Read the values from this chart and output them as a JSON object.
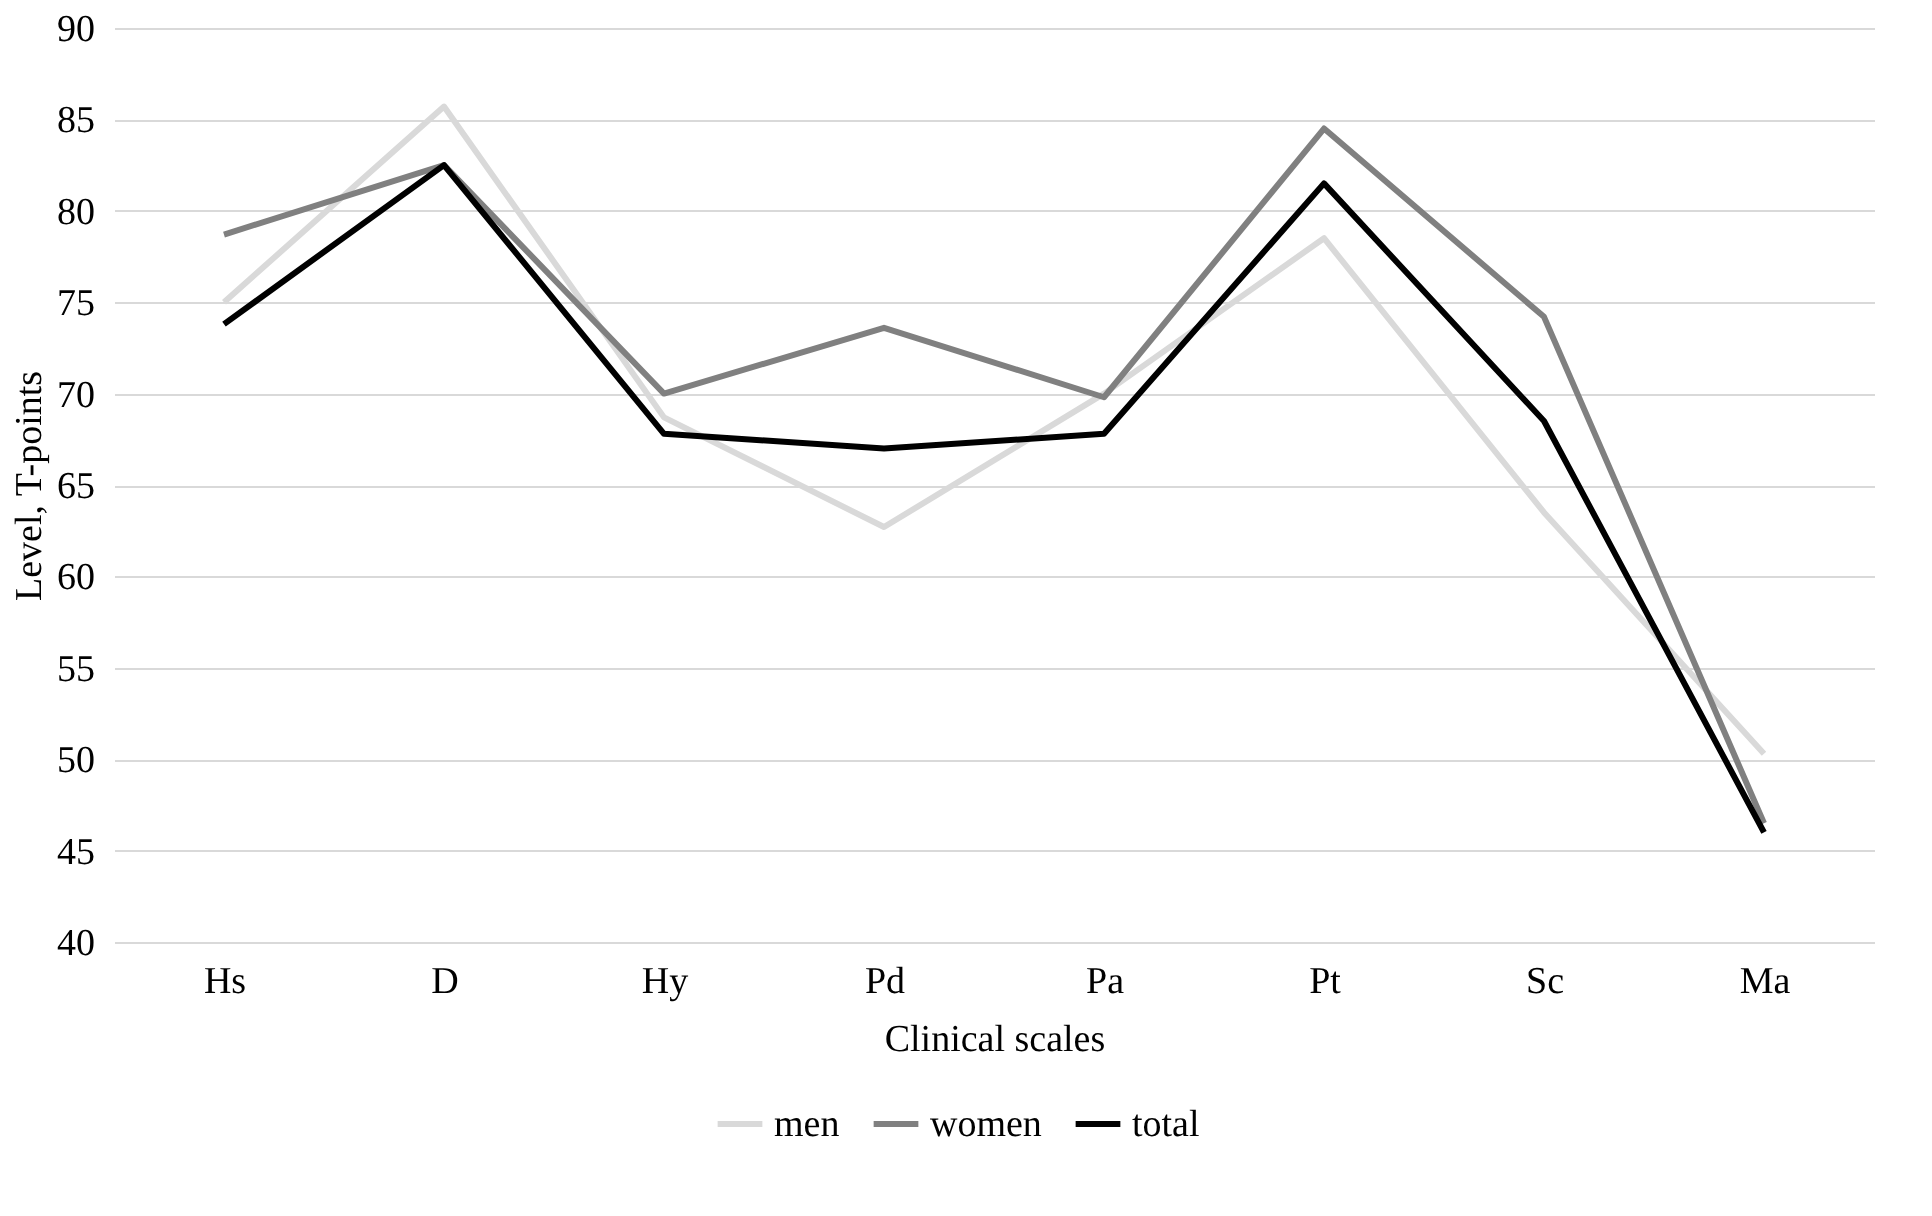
{
  "chart_data": {
    "type": "line",
    "xlabel": "Clinical scales",
    "ylabel": "Level, T-points",
    "categories": [
      "Hs",
      "D",
      "Hy",
      "Pd",
      "Pa",
      "Pt",
      "Sc",
      "Ma"
    ],
    "series": [
      {
        "name": "men",
        "color": "#d9d9d9",
        "values": [
          75,
          85.7,
          68.7,
          62.7,
          70,
          78.5,
          63.5,
          50.3
        ]
      },
      {
        "name": "women",
        "color": "#808080",
        "values": [
          78.7,
          82.5,
          70,
          73.6,
          69.8,
          84.5,
          74.2,
          46.5
        ]
      },
      {
        "name": "total",
        "color": "#000000",
        "values": [
          73.8,
          82.5,
          67.8,
          67,
          67.8,
          81.5,
          68.5,
          46
        ]
      }
    ],
    "ylim": [
      40,
      90
    ],
    "yticks": [
      40,
      45,
      50,
      55,
      60,
      65,
      70,
      75,
      80,
      85,
      90
    ],
    "grid": "y",
    "legend": "bottom",
    "marker": "none",
    "line_style": "solid"
  }
}
